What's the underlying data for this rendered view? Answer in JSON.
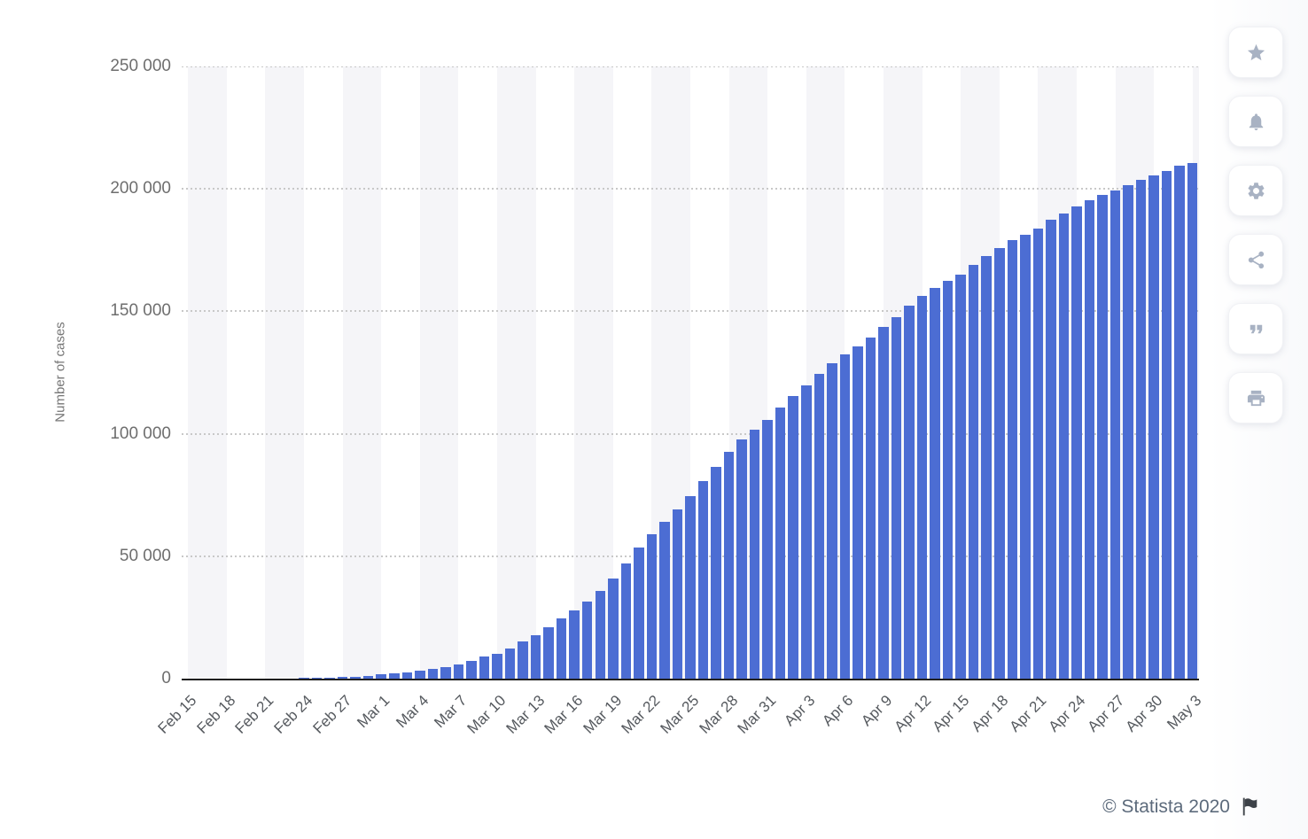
{
  "chart_data": {
    "type": "bar",
    "title": "",
    "ylabel": "Number of cases",
    "xlabel": "",
    "ylim": [
      0,
      250000
    ],
    "grid": "horizontal-dotted",
    "legend": "none",
    "bar_color": "#4c6dd3",
    "stripe_color": "#f5f5f8",
    "x_tick_step": 3,
    "y_ticks": [
      {
        "label": "250 000",
        "value": 250000
      },
      {
        "label": "200 000",
        "value": 200000
      },
      {
        "label": "150 000",
        "value": 150000
      },
      {
        "label": "100 000",
        "value": 100000
      },
      {
        "label": "50 000",
        "value": 50000
      },
      {
        "label": "0",
        "value": 0
      }
    ],
    "categories": [
      "Feb 15",
      "Feb 16",
      "Feb 17",
      "Feb 18",
      "Feb 19",
      "Feb 20",
      "Feb 21",
      "Feb 22",
      "Feb 23",
      "Feb 24",
      "Feb 25",
      "Feb 26",
      "Feb 27",
      "Feb 28",
      "Feb 29",
      "Mar 1",
      "Mar 2",
      "Mar 3",
      "Mar 4",
      "Mar 5",
      "Mar 6",
      "Mar 7",
      "Mar 8",
      "Mar 9",
      "Mar 10",
      "Mar 11",
      "Mar 12",
      "Mar 13",
      "Mar 14",
      "Mar 15",
      "Mar 16",
      "Mar 17",
      "Mar 18",
      "Mar 19",
      "Mar 20",
      "Mar 21",
      "Mar 22",
      "Mar 23",
      "Mar 24",
      "Mar 25",
      "Mar 26",
      "Mar 27",
      "Mar 28",
      "Mar 29",
      "Mar 30",
      "Mar 31",
      "Apr 1",
      "Apr 2",
      "Apr 3",
      "Apr 4",
      "Apr 5",
      "Apr 6",
      "Apr 7",
      "Apr 8",
      "Apr 9",
      "Apr 10",
      "Apr 11",
      "Apr 12",
      "Apr 13",
      "Apr 14",
      "Apr 15",
      "Apr 16",
      "Apr 17",
      "Apr 18",
      "Apr 19",
      "Apr 20",
      "Apr 21",
      "Apr 22",
      "Apr 23",
      "Apr 24",
      "Apr 25",
      "Apr 26",
      "Apr 27",
      "Apr 28",
      "Apr 29",
      "Apr 30",
      "May 1",
      "May 2",
      "May 3"
    ],
    "values": [
      3,
      3,
      3,
      3,
      3,
      4,
      21,
      79,
      157,
      229,
      323,
      470,
      655,
      889,
      1128,
      1694,
      2036,
      2502,
      3089,
      3858,
      4636,
      5883,
      7375,
      9172,
      10149,
      12462,
      15113,
      17660,
      21157,
      24747,
      27980,
      31506,
      35713,
      41035,
      47021,
      53578,
      59138,
      63927,
      69176,
      74386,
      80539,
      86498,
      92472,
      97689,
      101739,
      105792,
      110574,
      115242,
      119827,
      124632,
      128948,
      132547,
      135586,
      139422,
      143626,
      147577,
      152271,
      156363,
      159516,
      162488,
      165155,
      168941,
      172434,
      175925,
      178972,
      181228,
      183957,
      187327,
      189973,
      192994,
      195351,
      197675,
      199414,
      201505,
      203591,
      205463,
      207428,
      209328,
      210717
    ]
  },
  "toolbar": {
    "icon_color": "#a8b2c3",
    "buttons": [
      {
        "name": "favorite",
        "icon": "star-icon"
      },
      {
        "name": "notifications",
        "icon": "bell-icon"
      },
      {
        "name": "settings",
        "icon": "gear-icon"
      },
      {
        "name": "share",
        "icon": "share-icon"
      },
      {
        "name": "cite",
        "icon": "quote-icon"
      },
      {
        "name": "print",
        "icon": "printer-icon"
      }
    ]
  },
  "footer": {
    "copyright": "© Statista 2020",
    "flag_color": "#3d4248"
  }
}
